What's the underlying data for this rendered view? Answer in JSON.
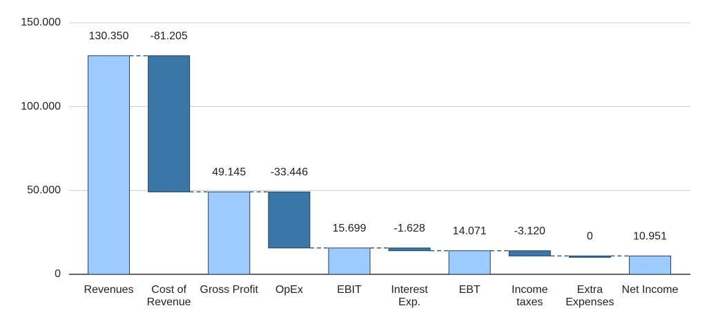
{
  "chart_data": {
    "type": "waterfall",
    "categories": [
      "Revenues",
      "Cost of Revenue",
      "Gross Profit",
      "OpEx",
      "EBIT",
      "Interest Exp.",
      "EBT",
      "Income taxes",
      "Extra Expenses",
      "Net Income"
    ],
    "values": [
      130350,
      -81205,
      49145,
      -33446,
      15699,
      -1628,
      14071,
      -3120,
      0,
      10951
    ],
    "value_labels": [
      "130.350",
      "-81.205",
      "49.145",
      "-33.446",
      "15.699",
      "-1.628",
      "14.071",
      "-3.120",
      "0",
      "10.951"
    ],
    "kinds": [
      "total",
      "delta",
      "total",
      "delta",
      "total",
      "delta",
      "total",
      "delta",
      "delta",
      "total"
    ],
    "total_color": "#9ecbff",
    "delta_color": "#3a76a6",
    "ylim": [
      0,
      150000
    ],
    "yticks": [
      0,
      {
        "value": 50000,
        "label": "50.000"
      },
      {
        "value": 100000,
        "label": "100.000"
      },
      {
        "value": 150000,
        "label": "150.000"
      }
    ],
    "grid": true
  }
}
